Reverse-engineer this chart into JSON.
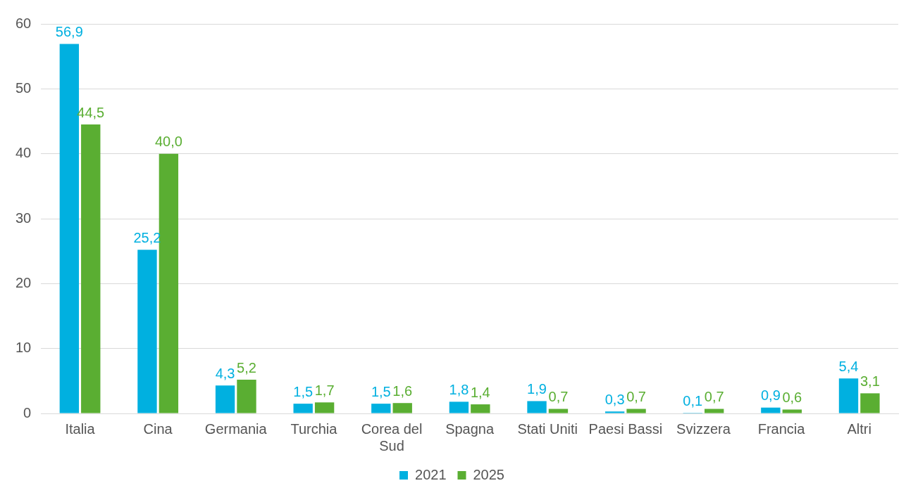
{
  "chart_data": {
    "type": "bar",
    "categories": [
      "Italia",
      "Cina",
      "Germania",
      "Turchia",
      "Corea del Sud",
      "Spagna",
      "Stati Uniti",
      "Paesi Bassi",
      "Svizzera",
      "Francia",
      "Altri"
    ],
    "series": [
      {
        "name": "2021",
        "color": "#00b0e0",
        "values": [
          56.9,
          25.2,
          4.3,
          1.5,
          1.5,
          1.8,
          1.9,
          0.3,
          0.1,
          0.9,
          5.4
        ],
        "value_labels": [
          "56,9",
          "25,2",
          "4,3",
          "1,5",
          "1,5",
          "1,8",
          "1,9",
          "0,3",
          "0,1",
          "0,9",
          "5,4"
        ]
      },
      {
        "name": "2025",
        "color": "#5aae32",
        "values": [
          44.5,
          40.0,
          5.2,
          1.7,
          1.6,
          1.4,
          0.7,
          0.7,
          0.7,
          0.6,
          3.1
        ],
        "value_labels": [
          "44,5",
          "40,0",
          "5,2",
          "1,7",
          "1,6",
          "1,4",
          "0,7",
          "0,7",
          "0,7",
          "0,6",
          "3,1"
        ]
      }
    ],
    "ylim": [
      0,
      60
    ],
    "yticks": [
      0,
      10,
      20,
      30,
      40,
      50,
      60
    ],
    "grid": "y",
    "legend": "bottom"
  }
}
